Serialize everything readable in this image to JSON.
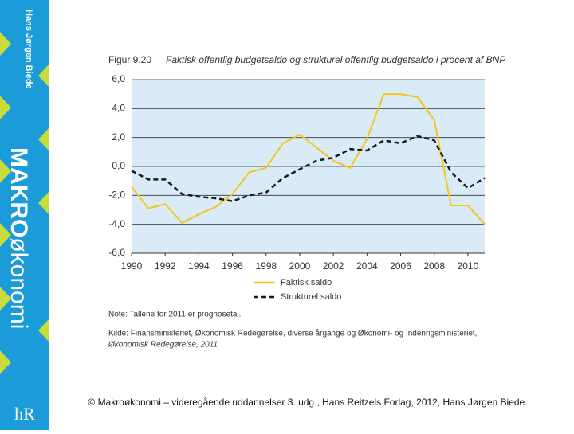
{
  "spine": {
    "author": "Hans Jørgen Biede",
    "title_bold": "MAKRO",
    "title_rest": "økonomi",
    "logo": "hR"
  },
  "chart_data": {
    "type": "line",
    "figure_label": "Figur 9.20",
    "title": "Faktisk offentlig budgetsaldo og strukturel offentlig budgetsaldo i procent af BNP",
    "x": [
      1990,
      1991,
      1992,
      1993,
      1994,
      1995,
      1996,
      1997,
      1998,
      1999,
      2000,
      2001,
      2002,
      2003,
      2004,
      2005,
      2006,
      2007,
      2008,
      2009,
      2010,
      2011
    ],
    "series": [
      {
        "name": "Faktisk saldo",
        "color": "#f5c518",
        "dashed": false,
        "values": [
          -1.4,
          -2.9,
          -2.6,
          -3.9,
          -3.3,
          -2.8,
          -1.9,
          -0.4,
          -0.1,
          1.6,
          2.2,
          1.3,
          0.4,
          -0.1,
          1.9,
          5.0,
          5.0,
          4.8,
          3.2,
          -2.7,
          -2.7,
          -4.0
        ]
      },
      {
        "name": "Strukturel saldo",
        "color": "#1a1a1a",
        "dashed": true,
        "values": [
          -0.3,
          -0.9,
          -0.9,
          -1.9,
          -2.1,
          -2.2,
          -2.4,
          -2.0,
          -1.8,
          -0.8,
          -0.2,
          0.4,
          0.6,
          1.2,
          1.1,
          1.8,
          1.6,
          2.1,
          1.8,
          -0.4,
          -1.5,
          -0.8
        ]
      }
    ],
    "xlim": [
      1990,
      2011
    ],
    "xticks": [
      1990,
      1992,
      1994,
      1996,
      1998,
      2000,
      2002,
      2004,
      2006,
      2008,
      2010
    ],
    "ylim": [
      -6,
      6
    ],
    "yticks": [
      {
        "value": 6,
        "label": "6,0"
      },
      {
        "value": 4,
        "label": "4,0"
      },
      {
        "value": 2,
        "label": "2,0"
      },
      {
        "value": 0,
        "label": "0,0"
      },
      {
        "value": -2,
        "label": "-2,0"
      },
      {
        "value": -4,
        "label": "-4,0"
      },
      {
        "value": -6,
        "label": "-6,0"
      }
    ],
    "grid": true,
    "background": "#d8ebf6",
    "note": "Note: Tallene for 2011 er prognosetal.",
    "source": "Kilde: Finansministeriet, Økonomisk Redegørelse, diverse årgange og Økonomi- og Indenrigsministeriet,",
    "source_cont": "Økonomisk Redegørelse, 2011"
  },
  "footer": "© Makroøkonomi – videregående uddannelser 3. udg., Hans Reitzels Forlag, 2012, Hans Jørgen Biede."
}
